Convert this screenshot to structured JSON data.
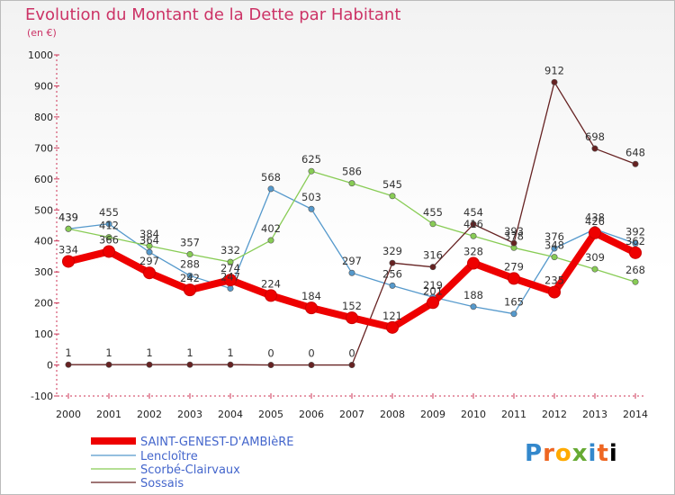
{
  "chart_data": {
    "type": "line",
    "title": "Evolution du Montant de la Dette par Habitant",
    "subtitle": "(en €)",
    "x": [
      "2000",
      "2001",
      "2002",
      "2003",
      "2004",
      "2005",
      "2006",
      "2007",
      "2008",
      "2009",
      "2010",
      "2011",
      "2012",
      "2013",
      "2014"
    ],
    "ylim": [
      -100,
      1000
    ],
    "yticks": [
      -100,
      0,
      100,
      200,
      300,
      400,
      500,
      600,
      700,
      800,
      900,
      1000
    ],
    "grid": false,
    "legend_position": "bottom-left",
    "series": [
      {
        "name": "SAINT-GENEST-D'AMBIèRE",
        "color": "#ee0000",
        "values": [
          334,
          366,
          297,
          242,
          274,
          224,
          184,
          152,
          121,
          201,
          328,
          279,
          235,
          426,
          362
        ]
      },
      {
        "name": "Lencloître",
        "color": "#5599cc",
        "values": [
          439,
          455,
          364,
          288,
          247,
          568,
          503,
          297,
          256,
          219,
          188,
          165,
          376,
          438,
          392
        ]
      },
      {
        "name": "Scorbé-Clairvaux",
        "color": "#88cc55",
        "values": [
          439,
          412,
          384,
          357,
          332,
          402,
          625,
          586,
          545,
          455,
          416,
          378,
          348,
          309,
          268
        ]
      },
      {
        "name": "Sossais",
        "color": "#662222",
        "values": [
          1,
          1,
          1,
          1,
          1,
          0,
          0,
          0,
          329,
          316,
          454,
          393,
          912,
          698,
          648
        ]
      }
    ]
  },
  "brand": {
    "logo_letters": [
      "P",
      "r",
      "o",
      "x",
      "i",
      "t",
      "i"
    ]
  }
}
